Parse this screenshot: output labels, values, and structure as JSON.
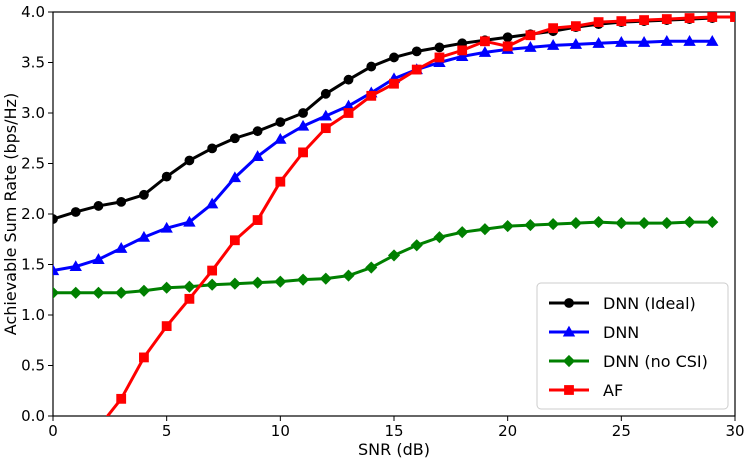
{
  "chart_data": {
    "type": "line",
    "title": "",
    "xlabel": "SNR (dB)",
    "ylabel": "Achievable Sum Rate (bps/Hz)",
    "xlim": [
      0,
      30
    ],
    "ylim": [
      0.0,
      4.0
    ],
    "xticks": [
      0,
      5,
      10,
      15,
      20,
      25,
      30
    ],
    "xtick_labels": [
      "0",
      "5",
      "10",
      "15",
      "20",
      "25",
      "30"
    ],
    "yticks": [
      0.0,
      0.5,
      1.0,
      1.5,
      2.0,
      2.5,
      3.0,
      3.5,
      4.0
    ],
    "ytick_labels": [
      "0.0",
      "0.5",
      "1.0",
      "1.5",
      "2.0",
      "2.5",
      "3.0",
      "3.5",
      "4.0"
    ],
    "grid": false,
    "legend_position": "bottom-right",
    "series": [
      {
        "name": "DNN (Ideal)",
        "color": "#000000",
        "marker": "circle",
        "x": [
          0,
          1,
          2,
          3,
          4,
          5,
          6,
          7,
          8,
          9,
          10,
          11,
          12,
          13,
          14,
          15,
          16,
          17,
          18,
          19,
          20,
          21,
          22,
          23,
          24,
          25,
          26,
          27,
          28,
          29
        ],
        "values": [
          1.95,
          2.02,
          2.08,
          2.12,
          2.19,
          2.37,
          2.53,
          2.65,
          2.75,
          2.82,
          2.91,
          3.0,
          3.19,
          3.33,
          3.46,
          3.55,
          3.61,
          3.65,
          3.69,
          3.72,
          3.75,
          3.78,
          3.81,
          3.85,
          3.88,
          3.9,
          3.91,
          3.92,
          3.93,
          3.94
        ]
      },
      {
        "name": "DNN",
        "color": "#0000ff",
        "marker": "triangle",
        "x": [
          0,
          1,
          2,
          3,
          4,
          5,
          6,
          7,
          8,
          9,
          10,
          11,
          12,
          13,
          14,
          15,
          16,
          17,
          18,
          19,
          20,
          21,
          22,
          23,
          24,
          25,
          26,
          27,
          28,
          29
        ],
        "values": [
          1.44,
          1.48,
          1.55,
          1.66,
          1.77,
          1.86,
          1.92,
          2.1,
          2.36,
          2.57,
          2.74,
          2.87,
          2.97,
          3.07,
          3.2,
          3.34,
          3.43,
          3.5,
          3.56,
          3.6,
          3.63,
          3.65,
          3.67,
          3.68,
          3.69,
          3.7,
          3.7,
          3.71,
          3.71,
          3.71
        ]
      },
      {
        "name": "DNN (no CSI)",
        "color": "#008000",
        "marker": "diamond",
        "x": [
          0,
          1,
          2,
          3,
          4,
          5,
          6,
          7,
          8,
          9,
          10,
          11,
          12,
          13,
          14,
          15,
          16,
          17,
          18,
          19,
          20,
          21,
          22,
          23,
          24,
          25,
          26,
          27,
          28,
          29
        ],
        "values": [
          1.22,
          1.22,
          1.22,
          1.22,
          1.24,
          1.27,
          1.28,
          1.3,
          1.31,
          1.32,
          1.33,
          1.35,
          1.36,
          1.39,
          1.47,
          1.59,
          1.69,
          1.77,
          1.82,
          1.85,
          1.88,
          1.89,
          1.9,
          1.91,
          1.92,
          1.91,
          1.91,
          1.91,
          1.92,
          1.92
        ]
      },
      {
        "name": "AF",
        "color": "#ff0000",
        "marker": "square",
        "x": [
          2.4,
          3,
          4,
          5,
          6,
          7,
          8,
          9,
          10,
          11,
          12,
          13,
          14,
          15,
          16,
          17,
          18,
          19,
          20,
          21,
          22,
          23,
          24,
          25,
          26,
          27,
          28,
          29,
          30
        ],
        "values": [
          0.0,
          0.17,
          0.58,
          0.89,
          1.16,
          1.44,
          1.74,
          1.94,
          2.32,
          2.61,
          2.85,
          3.0,
          3.17,
          3.29,
          3.43,
          3.55,
          3.62,
          3.71,
          3.66,
          3.77,
          3.84,
          3.86,
          3.9,
          3.91,
          3.92,
          3.93,
          3.94,
          3.95,
          3.95
        ]
      }
    ]
  }
}
